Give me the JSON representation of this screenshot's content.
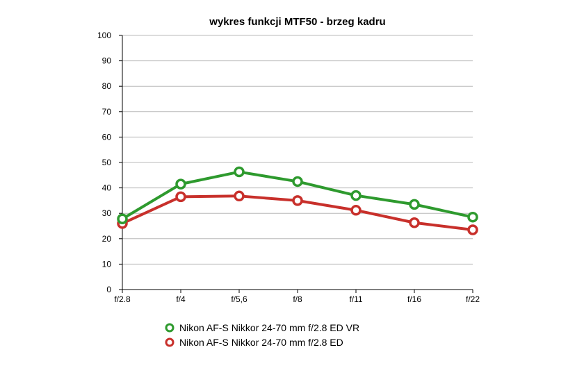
{
  "chart_data": {
    "type": "line",
    "title": "wykres funkcji MTF50 - brzeg kadru",
    "xlabel": "",
    "ylabel": "",
    "categories": [
      "f/2.8",
      "f/4",
      "f/5,6",
      "f/8",
      "f/11",
      "f/16",
      "f/22"
    ],
    "ylim": [
      0,
      100
    ],
    "yticks": [
      0,
      10,
      20,
      30,
      40,
      50,
      60,
      70,
      80,
      90,
      100
    ],
    "grid": true,
    "legend_position": "bottom",
    "series": [
      {
        "name": "Nikon AF-S Nikkor 24-70 mm f/2.8 ED VR",
        "color": "#2e9a2e",
        "values": [
          27.8,
          41.5,
          46.3,
          42.5,
          37.0,
          33.5,
          28.5
        ]
      },
      {
        "name": "Nikon AF-S Nikkor 24-70 mm f/2.8 ED",
        "color": "#c8302b",
        "values": [
          26.0,
          36.5,
          36.8,
          35.0,
          31.2,
          26.3,
          23.5
        ]
      }
    ]
  }
}
